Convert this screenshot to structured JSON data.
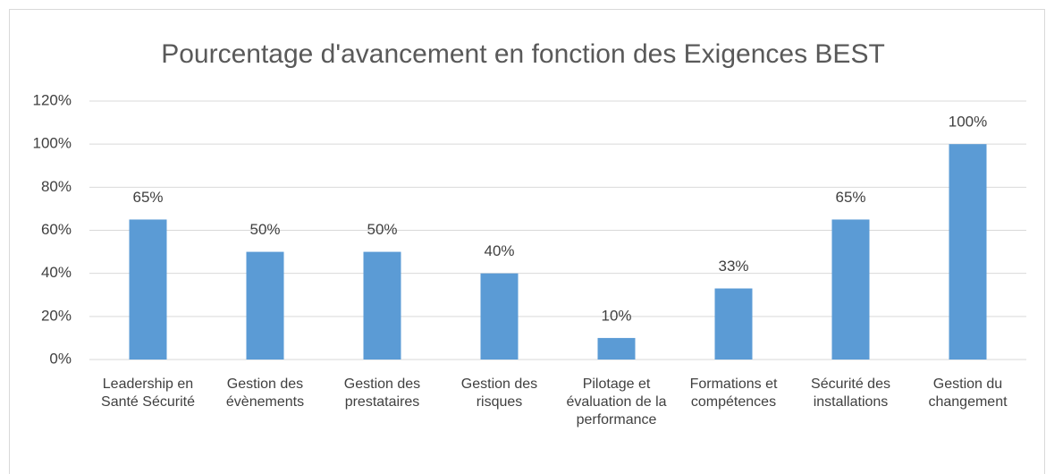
{
  "chart_data": {
    "type": "bar",
    "title": "Pourcentage d'avancement en fonction des Exigences BEST",
    "categories": [
      "Leadership en Santé Sécurité",
      "Gestion des évènements",
      "Gestion des prestataires",
      "Gestion des risques",
      "Pilotage et évaluation de la performance",
      "Formations et compétences",
      "Sécurité des installations",
      "Gestion du changement"
    ],
    "values": [
      65,
      50,
      50,
      40,
      10,
      33,
      65,
      100
    ],
    "value_labels": [
      "65%",
      "50%",
      "50%",
      "40%",
      "10%",
      "33%",
      "65%",
      "100%"
    ],
    "color": "#5b9bd5",
    "ylim": [
      0,
      120
    ],
    "yticks": [
      {
        "value": 0,
        "label": "0%"
      },
      {
        "value": 20,
        "label": "20%"
      },
      {
        "value": 40,
        "label": "40%"
      },
      {
        "value": 60,
        "label": "60%"
      },
      {
        "value": 80,
        "label": "80%"
      },
      {
        "value": 100,
        "label": "100%"
      },
      {
        "value": 120,
        "label": "120%"
      }
    ],
    "grid": true
  }
}
